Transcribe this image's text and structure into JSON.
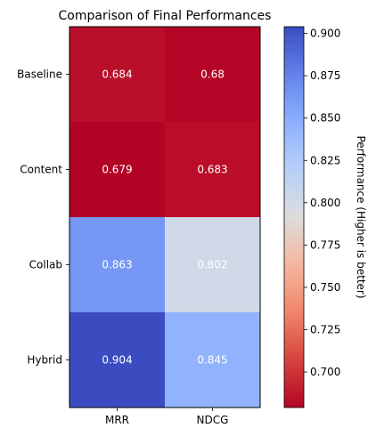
{
  "chart_data": {
    "type": "heatmap",
    "title": "Comparison of Final Performances",
    "xlabel": "",
    "ylabel": "",
    "x_categories": [
      "MRR",
      "NDCG"
    ],
    "y_categories": [
      "Baseline",
      "Content",
      "Collab",
      "Hybrid"
    ],
    "values": [
      [
        0.684,
        0.68
      ],
      [
        0.679,
        0.683
      ],
      [
        0.863,
        0.802
      ],
      [
        0.904,
        0.845
      ]
    ],
    "value_labels": [
      [
        "0.684",
        "0.68"
      ],
      [
        "0.679",
        "0.683"
      ],
      [
        "0.863",
        "0.802"
      ],
      [
        "0.904",
        "0.845"
      ]
    ],
    "colormap": "coolwarm_r",
    "colorbar": {
      "label": "Performance (Higher is better)",
      "vmin": 0.679,
      "vmax": 0.904,
      "ticks": [
        "0.700",
        "0.725",
        "0.750",
        "0.775",
        "0.800",
        "0.825",
        "0.850",
        "0.875",
        "0.900"
      ]
    },
    "grid": false,
    "legend": "colorbar-right",
    "annotation_color": "#ffffff"
  }
}
